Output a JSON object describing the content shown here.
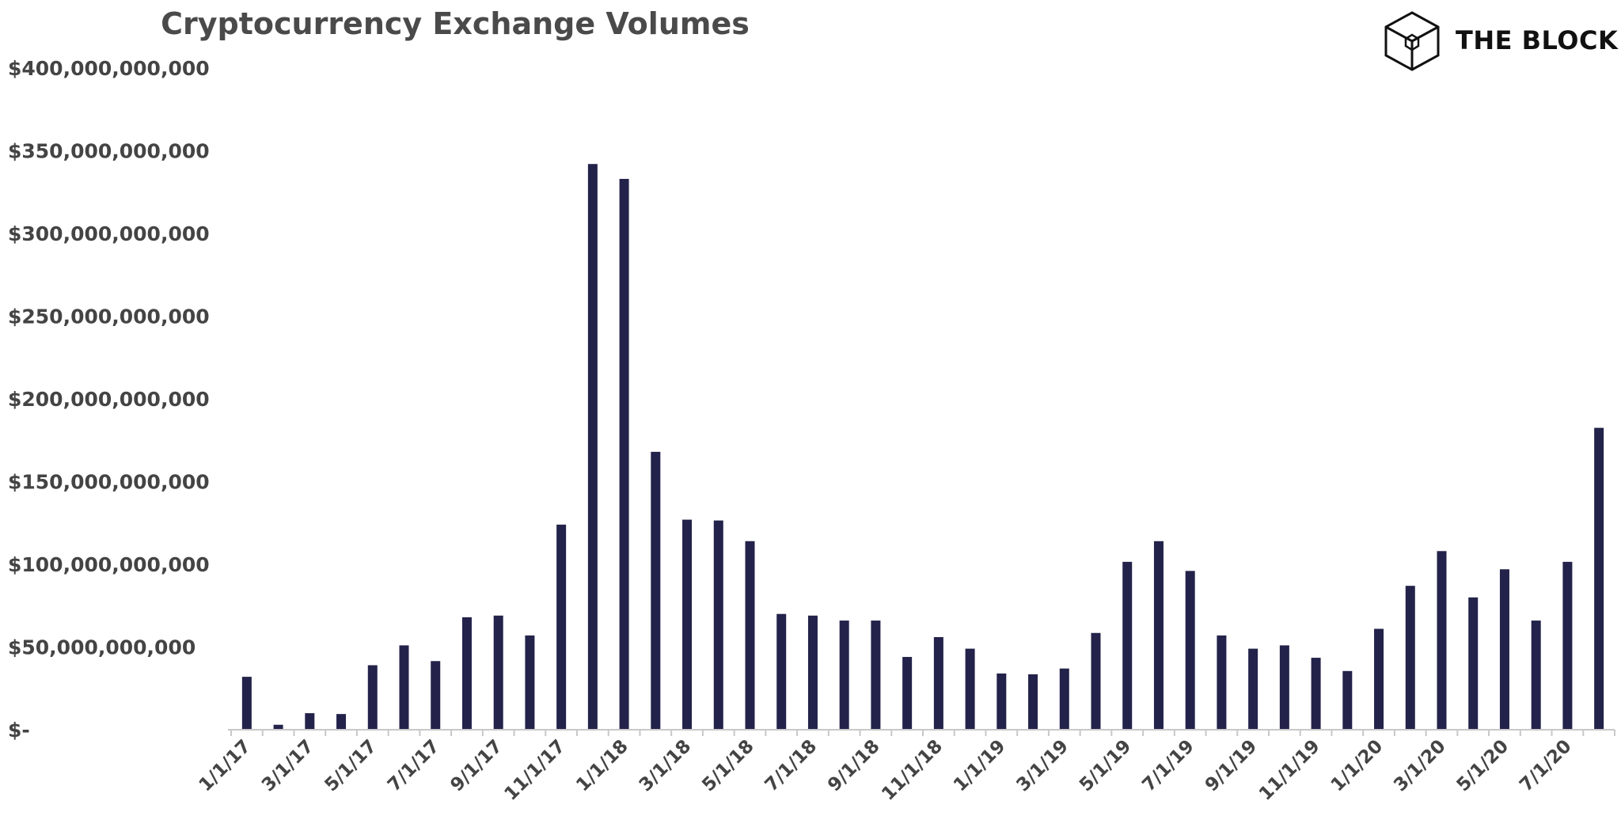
{
  "brand": {
    "name": "THE BLOCK",
    "logo_icon": "cube-logo-icon"
  },
  "chart_data": {
    "type": "bar",
    "title": "Cryptocurrency Exchange Volumes",
    "xlabel": "",
    "ylabel": "",
    "bar_color": "#22224a",
    "ylim": [
      0,
      400000000000
    ],
    "grid": false,
    "y_tick_values": [
      0,
      50000000000,
      100000000000,
      150000000000,
      200000000000,
      250000000000,
      300000000000,
      350000000000,
      400000000000
    ],
    "y_tick_labels": [
      "$-",
      "$50,000,000,000",
      "$100,000,000,000",
      "$150,000,000,000",
      "$200,000,000,000",
      "$250,000,000,000",
      "$300,000,000,000",
      "$350,000,000,000",
      "$400,000,000,000"
    ],
    "categories": [
      "1/1/17",
      "2/1/17",
      "3/1/17",
      "4/1/17",
      "5/1/17",
      "6/1/17",
      "7/1/17",
      "8/1/17",
      "9/1/17",
      "10/1/17",
      "11/1/17",
      "12/1/17",
      "1/1/18",
      "2/1/18",
      "3/1/18",
      "4/1/18",
      "5/1/18",
      "6/1/18",
      "7/1/18",
      "8/1/18",
      "9/1/18",
      "10/1/18",
      "11/1/18",
      "12/1/18",
      "1/1/19",
      "2/1/19",
      "3/1/19",
      "4/1/19",
      "5/1/19",
      "6/1/19",
      "7/1/19",
      "8/1/19",
      "9/1/19",
      "10/1/19",
      "11/1/19",
      "12/1/19",
      "1/1/20",
      "2/1/20",
      "3/1/20",
      "4/1/20",
      "5/1/20",
      "6/1/20",
      "7/1/20",
      "8/1/20"
    ],
    "x_tick_labels": [
      "1/1/17",
      "3/1/17",
      "5/1/17",
      "7/1/17",
      "9/1/17",
      "11/1/17",
      "1/1/18",
      "3/1/18",
      "5/1/18",
      "7/1/18",
      "9/1/18",
      "11/1/18",
      "1/1/19",
      "3/1/19",
      "5/1/19",
      "7/1/19",
      "9/1/19",
      "11/1/19",
      "1/1/20",
      "3/1/20",
      "5/1/20",
      "7/1/20"
    ],
    "values": [
      32000000000,
      3000000000,
      10000000000,
      9500000000,
      39000000000,
      51000000000,
      41500000000,
      68000000000,
      69000000000,
      57000000000,
      124000000000,
      342000000000,
      333000000000,
      168000000000,
      127000000000,
      126500000000,
      114000000000,
      70000000000,
      69000000000,
      66000000000,
      66000000000,
      44000000000,
      56000000000,
      49000000000,
      34000000000,
      33500000000,
      37000000000,
      58500000000,
      101500000000,
      114000000000,
      96000000000,
      57000000000,
      49000000000,
      51000000000,
      43500000000,
      35500000000,
      61000000000,
      87000000000,
      108000000000,
      80000000000,
      97000000000,
      66000000000,
      101500000000,
      182500000000
    ]
  }
}
